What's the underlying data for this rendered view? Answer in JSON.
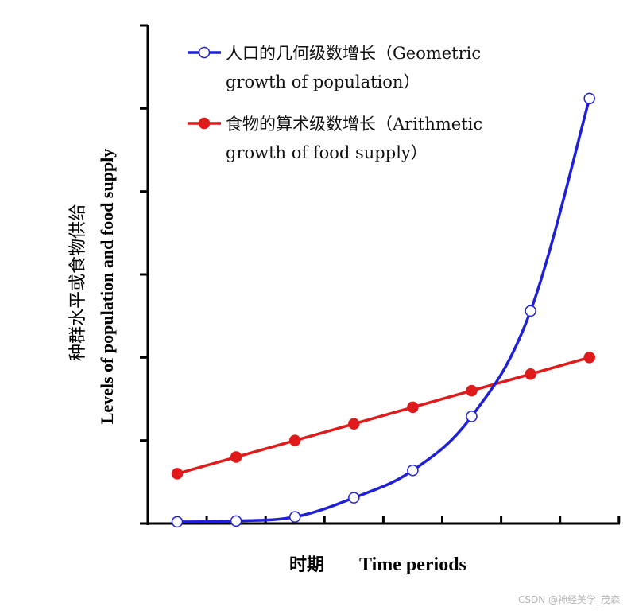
{
  "chart_data": {
    "type": "line",
    "x": [
      1,
      2,
      3,
      4,
      5,
      6,
      7,
      8
    ],
    "ylim": [
      0,
      6
    ],
    "grid": false,
    "legend_position": "top-left",
    "xlabel": {
      "cn": "时期",
      "en": "Time periods"
    },
    "ylabel": {
      "cn": "种群水平或食物供给",
      "en": "Levels of population and food supply"
    },
    "series": [
      {
        "name_line1": "人口的几何级数增长（Geometric",
        "name_line2": "growth of population）",
        "color": "#1f1fd6",
        "marker": "open-circle",
        "values": [
          0.02,
          0.03,
          0.08,
          0.31,
          0.64,
          1.29,
          2.56,
          5.12
        ]
      },
      {
        "name_line1": "食物的算术级数增长（Arithmetic",
        "name_line2": "growth of food supply）",
        "color": "#e01a1a",
        "marker": "filled-circle",
        "values": [
          0.6,
          0.8,
          1.0,
          1.2,
          1.4,
          1.6,
          1.8,
          2.0
        ]
      }
    ]
  },
  "watermark": "CSDN @神经美学_茂森"
}
